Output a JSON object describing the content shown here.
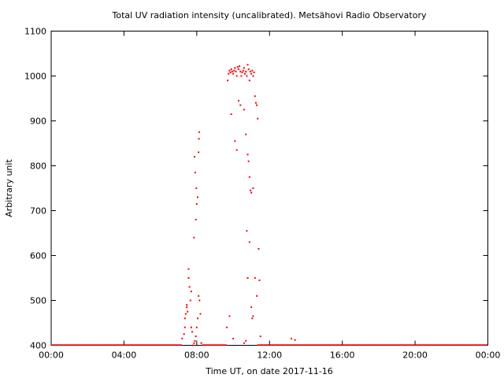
{
  "chart_data": {
    "type": "scatter",
    "title": "Total UV radiation intensity (uncalibrated). Metsähovi Radio Observatory",
    "xlabel": "Time UT, on date 2017-11-16",
    "ylabel": "Arbitrary unit",
    "xlim": [
      0,
      24
    ],
    "ylim": [
      400,
      1100
    ],
    "x_ticks": [
      0,
      4,
      8,
      12,
      16,
      20,
      24
    ],
    "x_tick_labels": [
      "00:00",
      "04:00",
      "08:00",
      "12:00",
      "16:00",
      "20:00",
      "00:00"
    ],
    "y_ticks": [
      400,
      500,
      600,
      700,
      800,
      900,
      1000,
      1100
    ],
    "y_tick_labels": [
      "400",
      "500",
      "600",
      "700",
      "800",
      "900",
      "1000",
      "1100"
    ],
    "grid": false,
    "marker_color": "#ff0000",
    "series": [
      {
        "baseline": {
          "x_start": 0.0,
          "x_end": 24.0,
          "y": 401
        },
        "x": [
          7.2,
          7.3,
          7.35,
          7.4,
          7.45,
          7.5,
          7.55,
          7.6,
          7.65,
          7.7,
          7.75,
          7.8,
          7.85,
          7.9,
          7.95,
          8.0,
          8.05,
          8.1,
          8.15,
          8.2,
          8.25,
          7.35,
          7.45,
          7.55,
          7.7,
          7.85,
          7.95,
          8.0,
          8.05,
          7.98,
          7.92,
          7.88,
          8.1,
          8.12,
          8.14,
          9.65,
          9.7,
          9.75,
          9.8,
          9.85,
          9.9,
          9.95,
          10.0,
          10.05,
          10.1,
          10.15,
          10.2,
          10.25,
          10.3,
          10.35,
          10.4,
          10.45,
          10.5,
          10.55,
          10.6,
          10.65,
          10.7,
          10.75,
          10.8,
          10.85,
          10.9,
          10.95,
          11.0,
          11.05,
          11.1,
          11.15,
          9.9,
          10.1,
          10.2,
          10.3,
          10.4,
          10.6,
          10.7,
          10.8,
          10.85,
          10.9,
          10.95,
          11.0,
          11.1,
          11.2,
          11.25,
          11.3,
          11.35,
          11.4,
          11.45,
          10.75,
          10.8,
          10.9,
          11.0,
          11.05,
          11.1,
          11.2,
          11.3,
          9.8,
          10.0,
          10.6,
          10.7,
          11.5,
          13.2,
          13.4
        ],
        "y": [
          415,
          425,
          440,
          470,
          490,
          475,
          550,
          530,
          500,
          440,
          430,
          400,
          405,
          410,
          420,
          440,
          460,
          510,
          500,
          470,
          405,
          460,
          485,
          570,
          520,
          640,
          680,
          715,
          730,
          750,
          785,
          820,
          830,
          860,
          875,
          440,
          990,
          1005,
          1012,
          1008,
          1015,
          1010,
          1005,
          1012,
          1018,
          1010,
          1000,
          1020,
          1015,
          1022,
          1010,
          1000,
          1008,
          1012,
          1018,
          1005,
          1010,
          1000,
          1025,
          1015,
          990,
          1010,
          1005,
          1012,
          1000,
          1008,
          915,
          855,
          835,
          945,
          935,
          925,
          870,
          825,
          810,
          775,
          745,
          740,
          750,
          955,
          940,
          935,
          905,
          615,
          545,
          655,
          550,
          630,
          485,
          460,
          465,
          550,
          510,
          465,
          415,
          405,
          410,
          420,
          415,
          412
        ]
      }
    ]
  }
}
